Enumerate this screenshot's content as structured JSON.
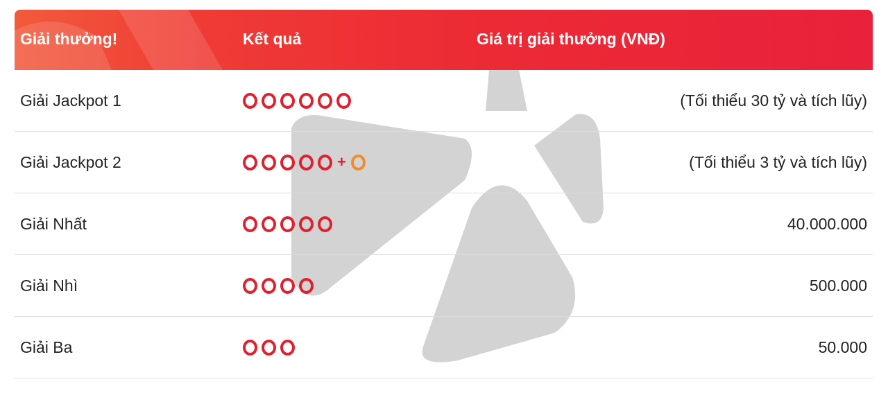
{
  "header": {
    "col_prize": "Giải thưởng!",
    "col_result": "Kết quả",
    "col_value": "Giá trị giải thưởng (VNĐ)"
  },
  "colors": {
    "header_red": "#ec2a35",
    "ball_red": "#e0202e",
    "ball_orange": "#f28c28",
    "watermark_gray": "#d3d3d3"
  },
  "watermark_icon": "star-logo-icon",
  "rows": [
    {
      "name": "Giải Jackpot 1",
      "main_balls": 6,
      "has_bonus": false,
      "value": "(Tối thiểu 30 tỷ và tích lũy)"
    },
    {
      "name": "Giải Jackpot 2",
      "main_balls": 5,
      "has_bonus": true,
      "bonus_sign": "+",
      "value": "(Tối thiểu 3 tỷ và tích lũy)"
    },
    {
      "name": "Giải Nhất",
      "main_balls": 5,
      "has_bonus": false,
      "value": "40.000.000"
    },
    {
      "name": "Giải Nhì",
      "main_balls": 4,
      "has_bonus": false,
      "value": "500.000"
    },
    {
      "name": "Giải Ba",
      "main_balls": 3,
      "has_bonus": false,
      "value": "50.000"
    }
  ]
}
